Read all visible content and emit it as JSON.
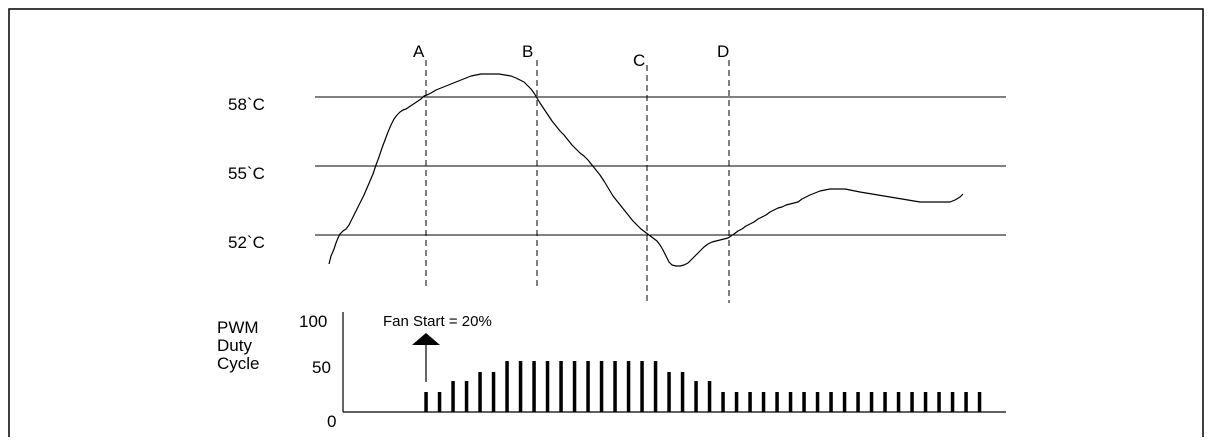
{
  "diagram": {
    "markers": [
      {
        "id": "A",
        "label": "A"
      },
      {
        "id": "B",
        "label": "B"
      },
      {
        "id": "C",
        "label": "C"
      },
      {
        "id": "D",
        "label": "D"
      }
    ],
    "temperature_levels": [
      "58`C",
      "55`C",
      "52`C"
    ],
    "duty_cycle_axis": {
      "title_lines": [
        "PWM",
        "Duty",
        "Cycle"
      ],
      "ticks": [
        "100",
        "50",
        "0"
      ]
    },
    "annotation": "Fan Start = 20%",
    "colors": {
      "ink": "#000000",
      "background": "#ffffff"
    }
  },
  "chart_data": {
    "type": "line",
    "temperature_curve": {
      "y_unit": "°C",
      "levels": [
        58,
        55,
        52
      ],
      "x": [
        0,
        0.05,
        0.1,
        0.15,
        0.2,
        0.25,
        0.3,
        0.35,
        0.4,
        0.45,
        0.5,
        0.55,
        0.6,
        0.65,
        0.7,
        0.75,
        0.8,
        0.85,
        0.9,
        0.95,
        1.0
      ],
      "y": [
        51.2,
        52.6,
        54.8,
        57.1,
        58.0,
        58.5,
        58.9,
        58.9,
        57.6,
        56.0,
        54.8,
        53.3,
        51.9,
        51.2,
        51.5,
        52.1,
        53.0,
        53.6,
        53.5,
        53.1,
        53.3
      ]
    },
    "pwm_duty_cycle": {
      "y_unit": "%",
      "ylim": [
        0,
        100
      ],
      "fan_start": 20,
      "values": [
        20,
        20,
        31,
        31,
        40,
        40,
        51,
        51,
        51,
        51,
        51,
        51,
        51,
        51,
        51,
        51,
        51,
        51,
        40,
        40,
        31,
        31,
        20,
        20,
        20,
        20,
        20,
        20,
        20,
        20,
        20,
        20,
        20,
        20,
        20,
        20,
        20,
        20,
        20,
        20,
        20,
        20
      ]
    }
  }
}
